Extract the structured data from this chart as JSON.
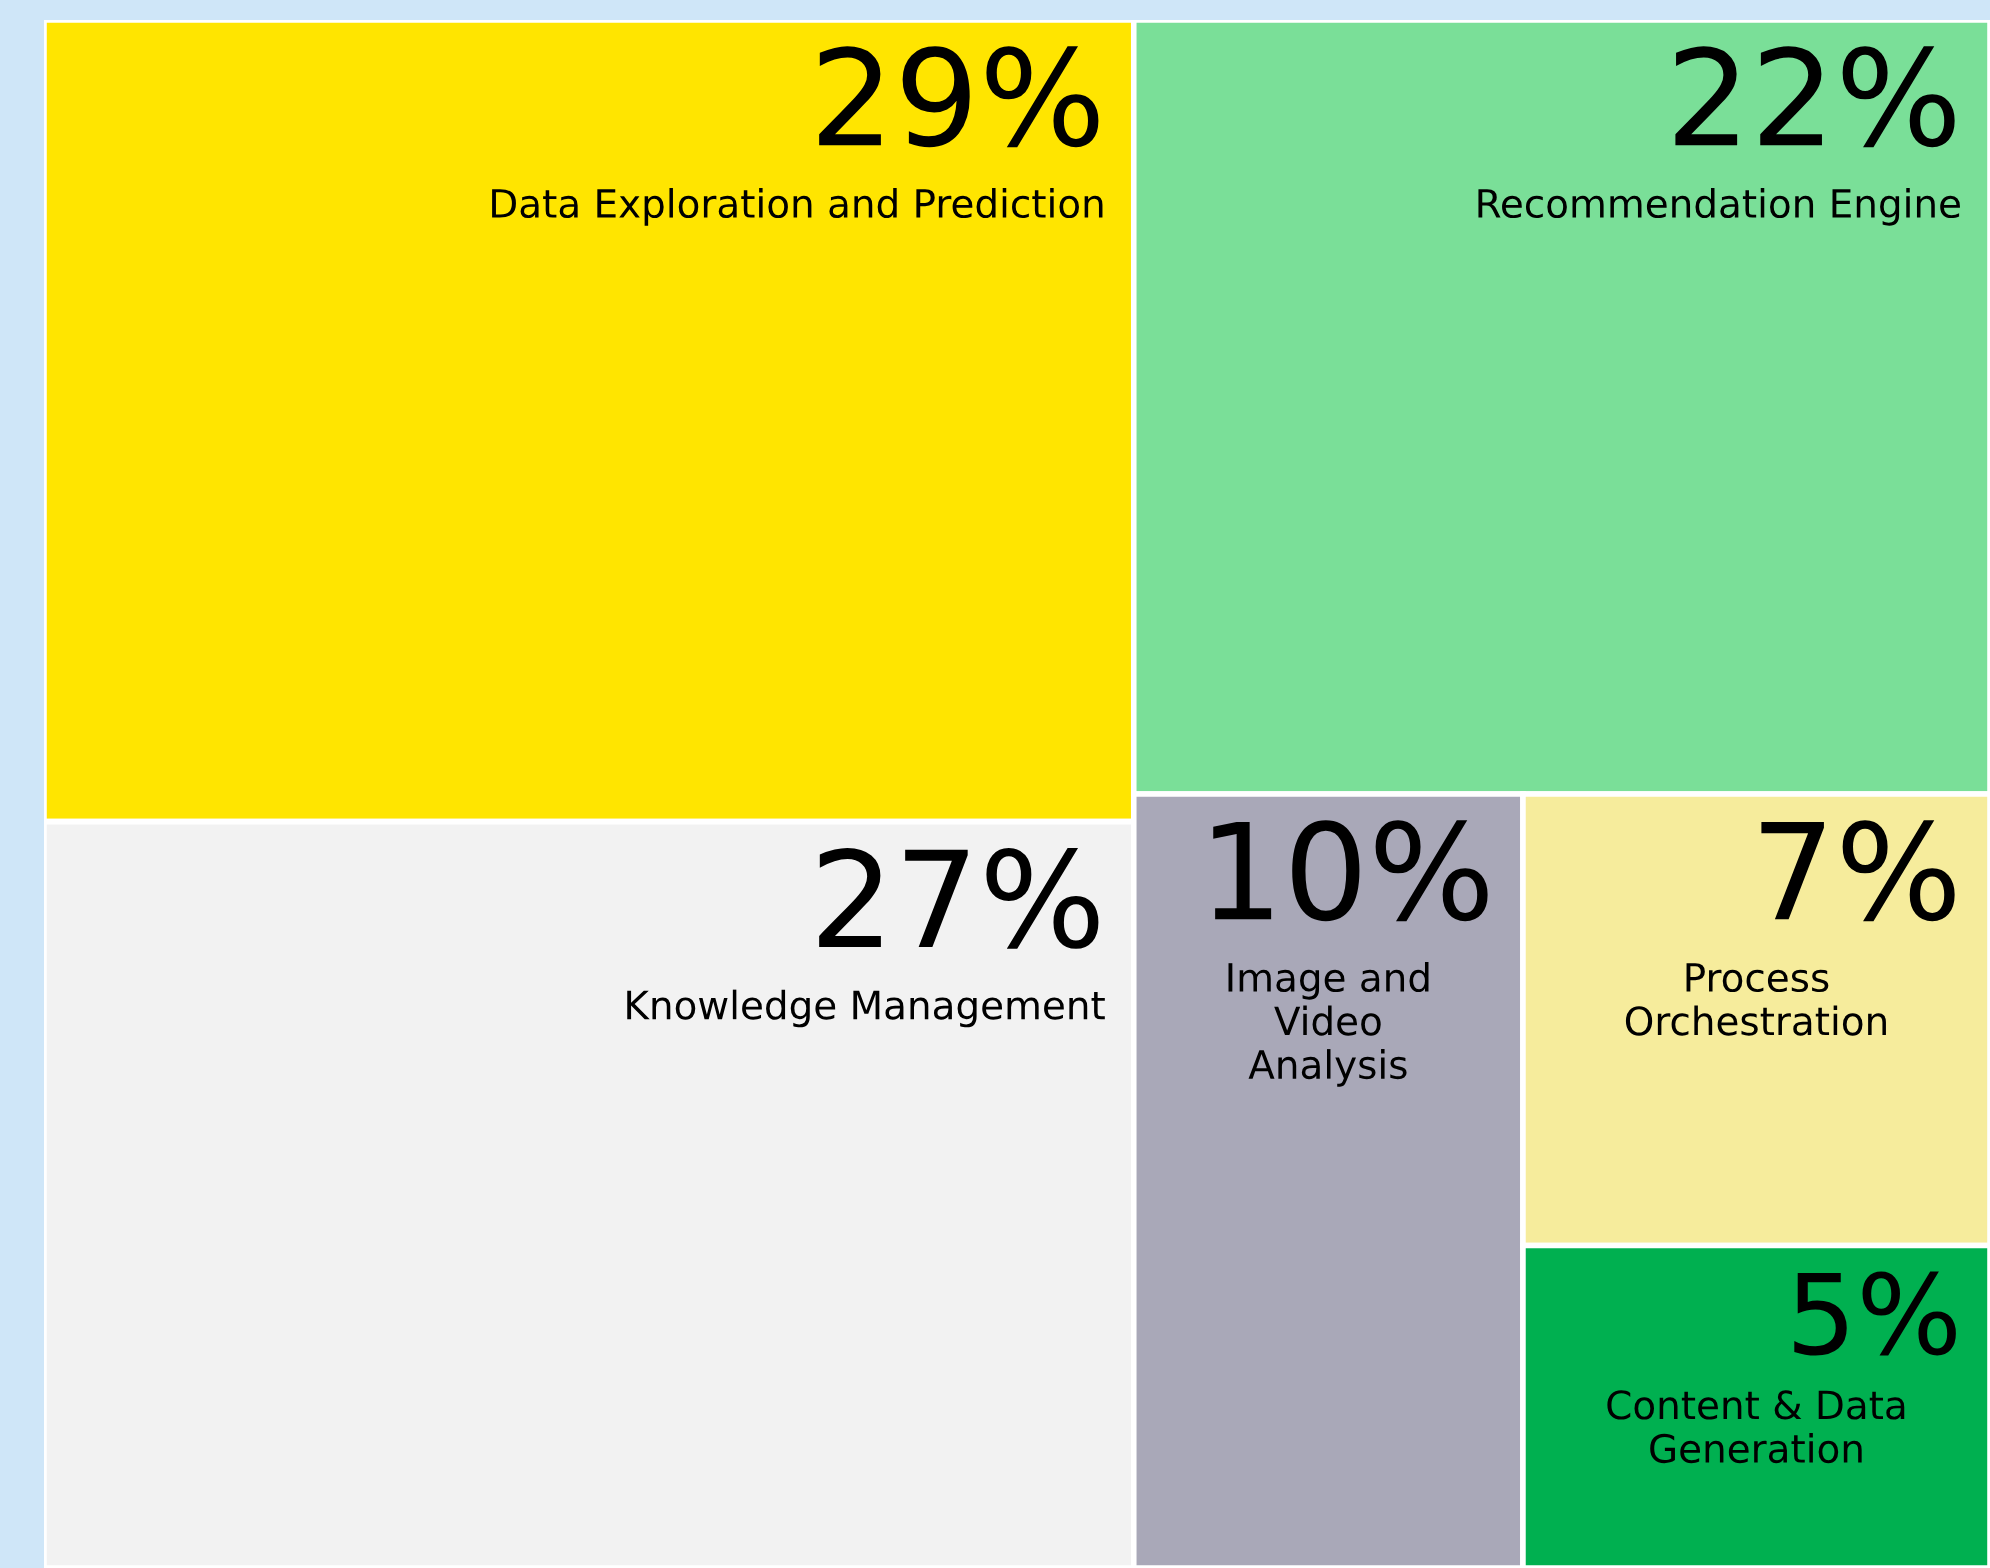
{
  "chart_data": {
    "type": "other",
    "categories": [
      "Data Exploration and Prediction",
      "Knowledge Management",
      "Recommendation Engine",
      "Image and\nVideo\nAnalysis",
      "Process\nOrchestration",
      "Content & Data\nGeneration"
    ],
    "values": [
      29,
      27,
      22,
      10,
      7,
      5
    ],
    "value_labels": [
      "29%",
      "27%",
      "22%",
      "10%",
      "7%",
      "5%"
    ],
    "colors": [
      "#ffe500",
      "#f2f2f2",
      "#7adf98",
      "#a9a8b8",
      "#f6ec9c",
      "#00b050"
    ]
  }
}
